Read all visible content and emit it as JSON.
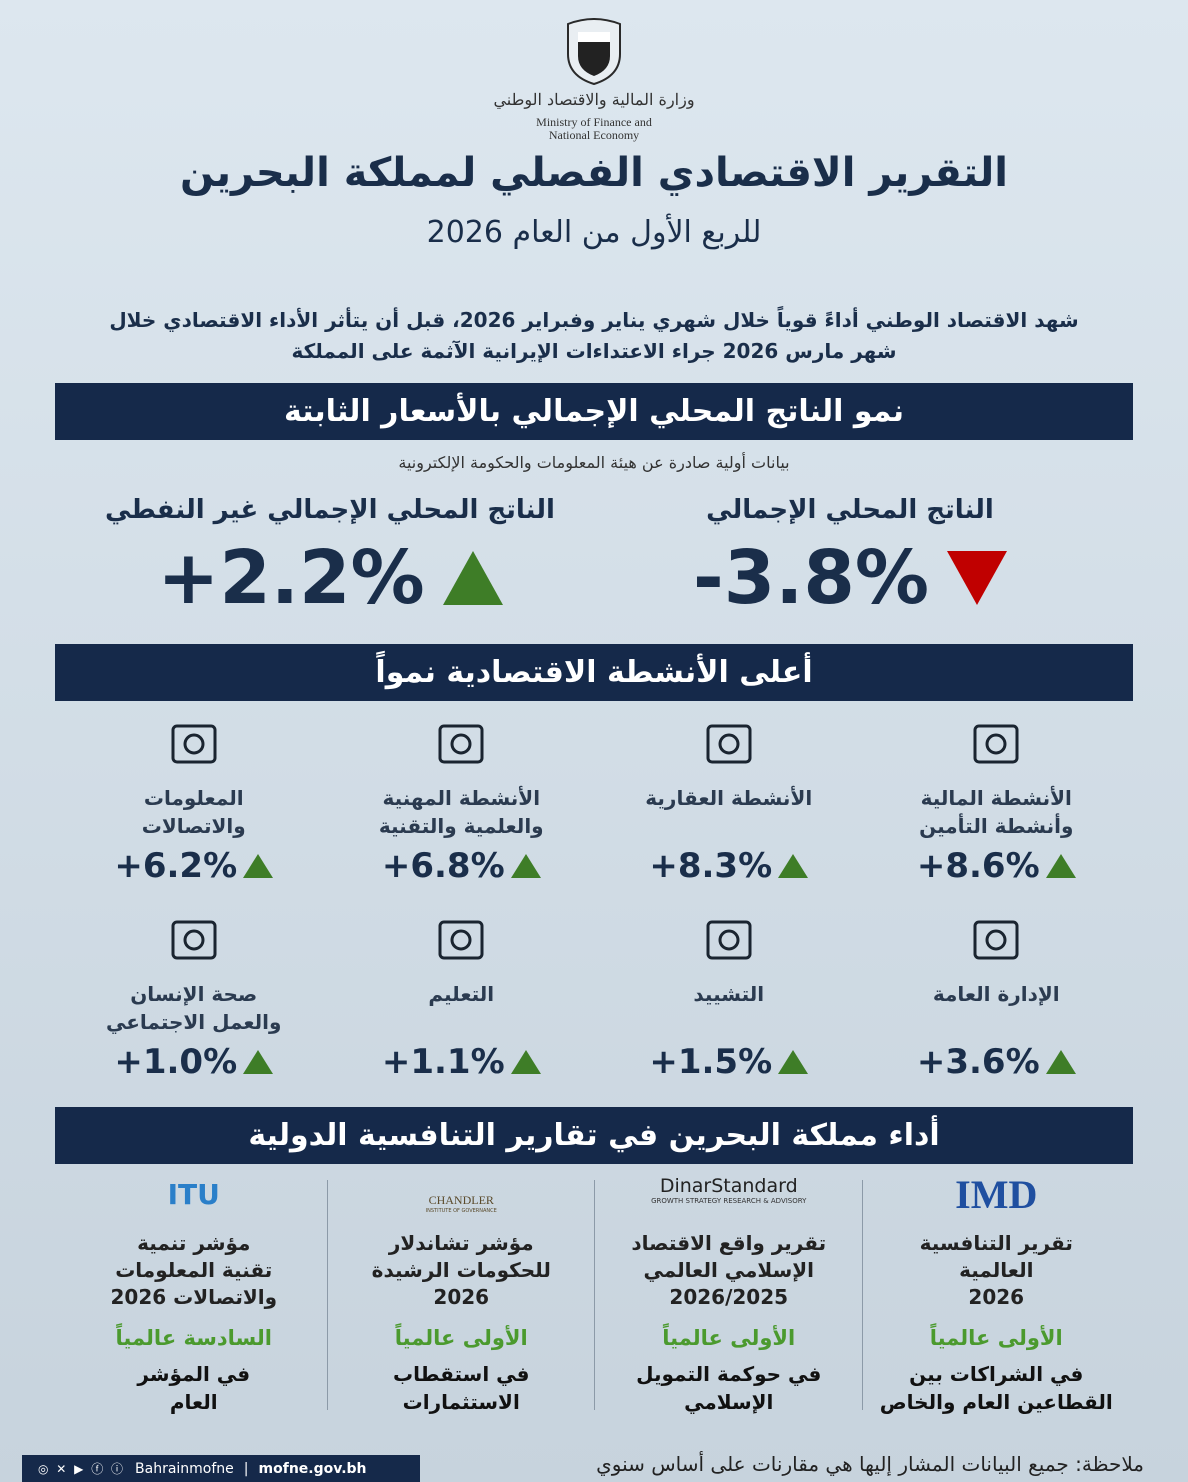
{
  "header": {
    "ministry_ar": "وزارة المالية والاقتصاد الوطني",
    "ministry_en": [
      "Ministry of Finance and",
      "National Economy"
    ],
    "title": "التقرير الاقتصادي الفصلي لمملكة البحرين",
    "subtitle": "للربع الأول من العام 2026"
  },
  "intro": [
    "شهد الاقتصاد الوطني أداءً قوياً خلال شهري يناير وفبراير 2026، قبل أن يتأثر الأداء الاقتصادي خلال",
    "شهر مارس 2026 جراء الاعتداءات الإيرانية الآثمة على المملكة"
  ],
  "gdp": {
    "heading": "نمو الناتج المحلي الإجمالي بالأسعار الثابتة",
    "source": "بيانات أولية صادرة عن هيئة المعلومات والحكومة الإلكترونية",
    "items": [
      {
        "label": "الناتج المحلي الإجمالي",
        "value": "-3.8%"
      },
      {
        "label": "الناتج المحلي الإجمالي غير النفطي",
        "value": "+2.2%"
      }
    ]
  },
  "activities": {
    "heading": "أعلى الأنشطة الاقتصادية نمواً",
    "items": [
      {
        "label": [
          "الأنشطة المالية",
          "وأنشطة التأمين"
        ],
        "value": "+8.6%"
      },
      {
        "label": [
          "الأنشطة العقارية"
        ],
        "value": "+8.3%"
      },
      {
        "label": [
          "الأنشطة المهنية",
          "والعلمية والتقنية"
        ],
        "value": "+6.8%"
      },
      {
        "label": [
          "المعلومات",
          "والاتصالات"
        ],
        "value": "+6.2%"
      },
      {
        "label": [
          "الإدارة العامة"
        ],
        "value": "+3.6%"
      },
      {
        "label": [
          "التشييد"
        ],
        "value": "+1.5%"
      },
      {
        "label": [
          "التعليم"
        ],
        "value": "+1.1%"
      },
      {
        "label": [
          "صحة الإنسان",
          "والعمل الاجتماعي"
        ],
        "value": "+1.0%"
      }
    ]
  },
  "competitiveness": {
    "heading": "أداء مملكة البحرين في تقارير التنافسية الدولية",
    "items": [
      {
        "logo": [
          "IMD"
        ],
        "report": [
          "تقرير التنافسية",
          "العالمية",
          "2026"
        ],
        "rank": "الأولى عالمياً",
        "detail": [
          "في الشراكات بين",
          "القطاعين العام والخاص"
        ]
      },
      {
        "logo": [
          "DinarStandard",
          "GROWTH STRATEGY RESEARCH & ADVISORY"
        ],
        "report": [
          "تقرير واقع الاقتصاد",
          "الإسلامي العالمي",
          "2026/2025"
        ],
        "rank": "الأولى عالمياً",
        "detail": [
          "في حوكمة التمويل",
          "الإسلامي"
        ]
      },
      {
        "logo": [
          "CHANDLER",
          "INSTITUTE OF GOVERNANCE"
        ],
        "report": [
          "مؤشر تشاندلار",
          "للحكومات الرشيدة",
          "2026"
        ],
        "rank": "الأولى عالمياً",
        "detail": [
          "في استقطاب",
          "الاستثمارات"
        ]
      },
      {
        "logo": [
          "ITU"
        ],
        "report": [
          "مؤشر تنمية",
          "تقنية المعلومات",
          "والاتصالات 2026"
        ],
        "rank": "السادسة عالمياً",
        "detail": [
          "في المؤشر",
          "العام"
        ]
      }
    ]
  },
  "footer": {
    "handle": "Bahrainmofne",
    "website": "mofne.gov.bh",
    "note": "ملاحظة: جميع البيانات المشار إليها هي مقارنات على أساس سنوي"
  }
}
